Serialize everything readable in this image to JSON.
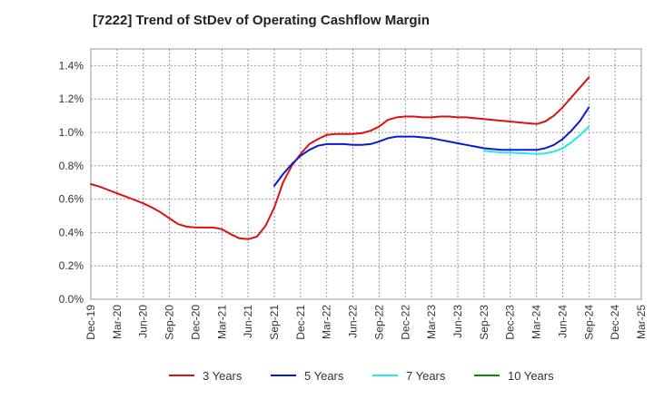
{
  "chart_data": {
    "type": "line",
    "title": "[7222]  Trend of StDev of Operating Cashflow Margin",
    "xlabel": "",
    "ylabel": "",
    "x_ticks": [
      "Dec-19",
      "Mar-20",
      "Jun-20",
      "Sep-20",
      "Dec-20",
      "Mar-21",
      "Jun-21",
      "Sep-21",
      "Dec-21",
      "Mar-22",
      "Jun-22",
      "Sep-22",
      "Dec-22",
      "Mar-23",
      "Jun-23",
      "Sep-23",
      "Dec-23",
      "Mar-24",
      "Jun-24",
      "Sep-24",
      "Dec-24",
      "Mar-25"
    ],
    "y_ticks": [
      "0.0%",
      "0.2%",
      "0.4%",
      "0.6%",
      "0.8%",
      "1.0%",
      "1.2%",
      "1.4%"
    ],
    "ylim": [
      0,
      1.5
    ],
    "grid": true,
    "legend_position": "bottom",
    "series": [
      {
        "name": "3 Years",
        "color": "#dd1111",
        "x": [
          "Dec-19",
          "Jan-20",
          "Feb-20",
          "Mar-20",
          "Apr-20",
          "May-20",
          "Jun-20",
          "Jul-20",
          "Aug-20",
          "Sep-20",
          "Oct-20",
          "Nov-20",
          "Dec-20",
          "Jan-21",
          "Feb-21",
          "Mar-21",
          "Apr-21",
          "May-21",
          "Jun-21",
          "Jul-21",
          "Aug-21",
          "Sep-21",
          "Oct-21",
          "Nov-21",
          "Dec-21",
          "Jan-22",
          "Feb-22",
          "Mar-22",
          "Apr-22",
          "May-22",
          "Jun-22",
          "Jul-22",
          "Aug-22",
          "Sep-22",
          "Oct-22",
          "Nov-22",
          "Dec-22",
          "Jan-23",
          "Feb-23",
          "Mar-23",
          "Apr-23",
          "May-23",
          "Jun-23",
          "Jul-23",
          "Aug-23",
          "Sep-23",
          "Oct-23",
          "Nov-23",
          "Dec-23",
          "Jan-24",
          "Feb-24",
          "Mar-24",
          "Apr-24",
          "May-24",
          "Jun-24",
          "Jul-24",
          "Aug-24",
          "Sep-24"
        ],
        "values": [
          0.69,
          0.675,
          0.655,
          0.635,
          0.615,
          0.595,
          0.575,
          0.55,
          0.52,
          0.485,
          0.45,
          0.435,
          0.43,
          0.43,
          0.43,
          0.42,
          0.39,
          0.365,
          0.36,
          0.375,
          0.44,
          0.55,
          0.7,
          0.8,
          0.87,
          0.93,
          0.96,
          0.985,
          0.99,
          0.99,
          0.99,
          0.995,
          1.01,
          1.035,
          1.075,
          1.09,
          1.095,
          1.095,
          1.09,
          1.09,
          1.095,
          1.095,
          1.09,
          1.09,
          1.085,
          1.08,
          1.075,
          1.07,
          1.065,
          1.06,
          1.055,
          1.05,
          1.065,
          1.1,
          1.15,
          1.21,
          1.27,
          1.33
        ]
      },
      {
        "name": "5 Years",
        "color": "#0a1ad0",
        "x": [
          "Sep-21",
          "Oct-21",
          "Nov-21",
          "Dec-21",
          "Jan-22",
          "Feb-22",
          "Mar-22",
          "Apr-22",
          "May-22",
          "Jun-22",
          "Jul-22",
          "Aug-22",
          "Sep-22",
          "Oct-22",
          "Nov-22",
          "Dec-22",
          "Jan-23",
          "Feb-23",
          "Mar-23",
          "Apr-23",
          "May-23",
          "Jun-23",
          "Jul-23",
          "Aug-23",
          "Sep-23",
          "Oct-23",
          "Nov-23",
          "Dec-23",
          "Jan-24",
          "Feb-24",
          "Mar-24",
          "Apr-24",
          "May-24",
          "Jun-24",
          "Jul-24",
          "Aug-24",
          "Sep-24"
        ],
        "values": [
          0.68,
          0.75,
          0.81,
          0.86,
          0.895,
          0.92,
          0.93,
          0.93,
          0.93,
          0.925,
          0.925,
          0.93,
          0.945,
          0.965,
          0.975,
          0.975,
          0.975,
          0.97,
          0.965,
          0.955,
          0.945,
          0.935,
          0.925,
          0.915,
          0.905,
          0.9,
          0.895,
          0.895,
          0.895,
          0.895,
          0.895,
          0.905,
          0.925,
          0.96,
          1.01,
          1.07,
          1.15
        ]
      },
      {
        "name": "7 Years",
        "color": "#22e8e8",
        "x": [
          "Sep-23",
          "Oct-23",
          "Nov-23",
          "Dec-23",
          "Jan-24",
          "Feb-24",
          "Mar-24",
          "Apr-24",
          "May-24",
          "Jun-24",
          "Jul-24",
          "Aug-24",
          "Sep-24"
        ],
        "values": [
          0.89,
          0.885,
          0.88,
          0.878,
          0.876,
          0.874,
          0.872,
          0.874,
          0.885,
          0.905,
          0.94,
          0.985,
          1.035
        ]
      },
      {
        "name": "10 Years",
        "color": "#118811",
        "x": [],
        "values": []
      }
    ]
  }
}
